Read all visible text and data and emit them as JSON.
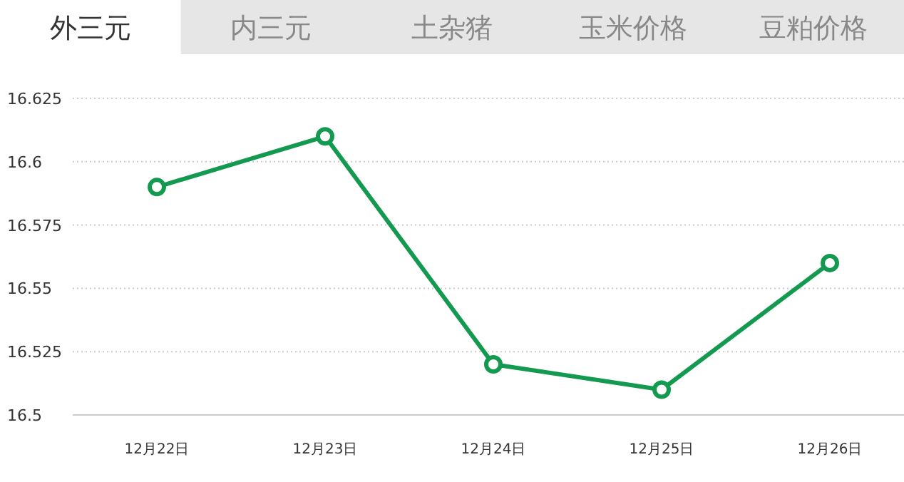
{
  "chart_data": {
    "type": "line",
    "title": "外三元",
    "annotations": [
      "内三元",
      "土杂猪",
      "玉米价格",
      "豆粕价格"
    ],
    "categories": [
      "12月22日",
      "12月23日",
      "12月24日",
      "12月25日",
      "12月26日"
    ],
    "series": [
      {
        "color": "#139a50",
        "values": [
          16.59,
          16.61,
          16.52,
          16.51,
          16.56
        ]
      }
    ],
    "ylim": [
      16.5,
      16.625
    ],
    "yticks": [
      16.5,
      16.525,
      16.55,
      16.575,
      16.6,
      16.625
    ],
    "grid": "y",
    "marker": "circle",
    "line_style": "solid"
  }
}
